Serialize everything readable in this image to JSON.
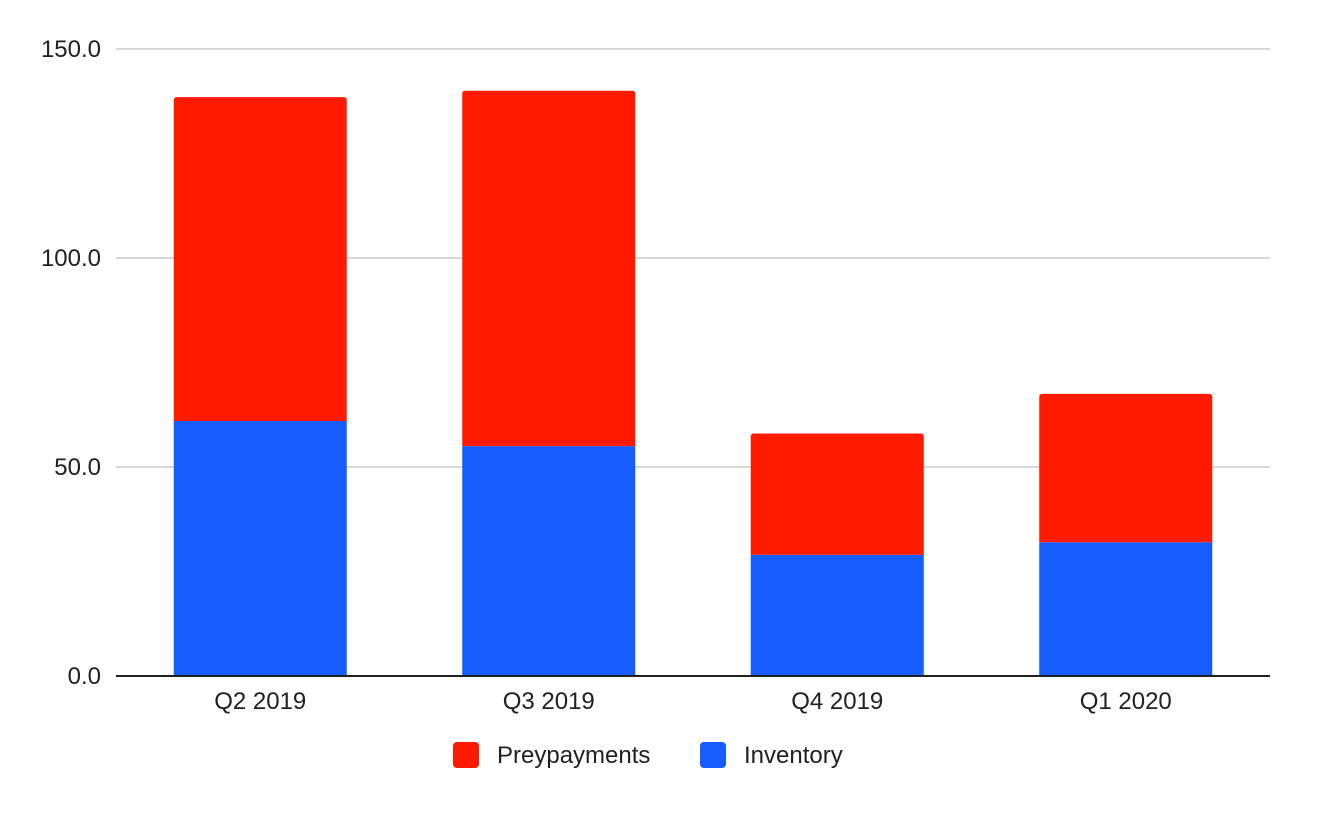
{
  "chart_data": {
    "type": "bar",
    "stacked": true,
    "categories": [
      "Q2 2019",
      "Q3 2019",
      "Q4 2019",
      "Q1 2020"
    ],
    "series": [
      {
        "name": "Inventory",
        "color": "#165cff",
        "values": [
          61,
          55,
          29,
          32
        ]
      },
      {
        "name": "Preypayments",
        "color": "#ff1a00",
        "values": [
          77.5,
          85,
          29,
          35.5
        ]
      }
    ],
    "yticks": [
      "0.0",
      "50.0",
      "100.0",
      "150.0"
    ],
    "ylim": [
      0,
      150
    ],
    "grid": true,
    "legend": {
      "position": "bottom",
      "order": [
        "Preypayments",
        "Inventory"
      ]
    }
  }
}
